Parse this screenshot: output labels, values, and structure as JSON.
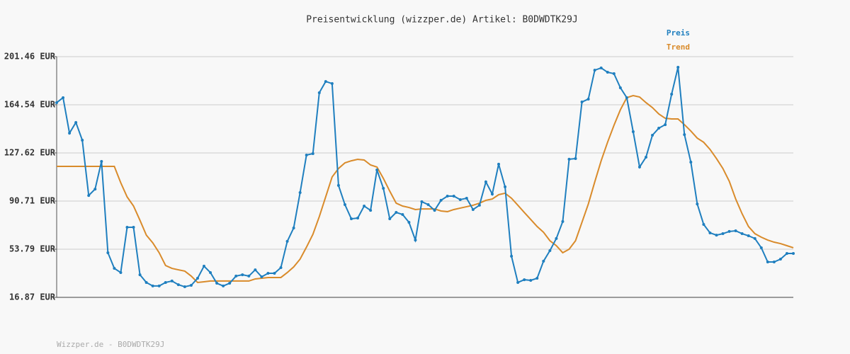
{
  "chart_data": {
    "type": "line",
    "title": "Preisentwicklung (wizzper.de) Artikel: B0DWDTK29J",
    "footer": "Wizzper.de - B0DWDTK29J",
    "categories": [
      null,
      null,
      null,
      null,
      null,
      null,
      null,
      null,
      null,
      null,
      null,
      null,
      null,
      null,
      null,
      null,
      null,
      null,
      null,
      null,
      null,
      null,
      null,
      null,
      null,
      null,
      null,
      null,
      null,
      null,
      null,
      null,
      null,
      null,
      null,
      null,
      null,
      null,
      null,
      null,
      null,
      null,
      null,
      null,
      null,
      null,
      null,
      null,
      null,
      null,
      null,
      null,
      null,
      null,
      null,
      null,
      null,
      null,
      null,
      null,
      null,
      null,
      null,
      null,
      null,
      null,
      null,
      null,
      null,
      null,
      null,
      null,
      null,
      null,
      null,
      null,
      null,
      null,
      null,
      null,
      null,
      null,
      null,
      null,
      null,
      null,
      null,
      null,
      null,
      null,
      null,
      null,
      null,
      null,
      null,
      null,
      null,
      null,
      null,
      null,
      null,
      null,
      null,
      null,
      null,
      null,
      null,
      null,
      null,
      null,
      null,
      null,
      null,
      null,
      null,
      null
    ],
    "series": [
      {
        "name": "Preis",
        "color": "#1f7fbf",
        "markers": true,
        "values": [
          166.2,
          170.0,
          142.8,
          151.0,
          137.4,
          95.0,
          99.9,
          121.1,
          51.1,
          39.1,
          35.9,
          70.6,
          70.6,
          34.2,
          28.3,
          25.6,
          25.6,
          28.3,
          29.4,
          26.6,
          25.0,
          26.1,
          31.5,
          40.8,
          35.9,
          27.7,
          25.6,
          27.7,
          33.2,
          34.2,
          33.2,
          38.0,
          32.6,
          35.3,
          35.3,
          39.7,
          59.8,
          70.1,
          97.2,
          126.0,
          127.1,
          173.8,
          182.4,
          180.8,
          102.7,
          88.0,
          77.1,
          77.7,
          86.9,
          83.6,
          114.6,
          100.5,
          77.1,
          82.0,
          80.4,
          74.4,
          60.8,
          90.2,
          88.0,
          83.6,
          91.3,
          94.5,
          94.5,
          91.8,
          92.9,
          84.2,
          87.5,
          105.4,
          96.1,
          119.0,
          101.6,
          48.4,
          28.3,
          30.4,
          29.9,
          31.5,
          44.6,
          52.7,
          62.0,
          75.0,
          122.8,
          123.3,
          166.7,
          168.9,
          191.1,
          192.8,
          189.5,
          188.4,
          177.6,
          170.0,
          143.9,
          116.8,
          124.4,
          141.2,
          146.6,
          149.3,
          172.7,
          193.3,
          141.7,
          120.6,
          88.5,
          72.8,
          66.3,
          64.6,
          65.7,
          67.4,
          67.9,
          65.7,
          64.1,
          62.0,
          54.9,
          44.0,
          44.0,
          46.2,
          50.5,
          50.5
        ]
      },
      {
        "name": "Trend",
        "color": "#d98b2b",
        "markers": false,
        "values": [
          117.3,
          117.3,
          117.3,
          117.3,
          117.3,
          117.3,
          117.3,
          117.3,
          117.3,
          117.3,
          104.8,
          93.9,
          86.9,
          76.0,
          64.6,
          58.7,
          51.1,
          41.3,
          39.1,
          38.0,
          37.0,
          33.2,
          28.3,
          28.8,
          29.4,
          29.4,
          29.4,
          29.4,
          29.4,
          29.4,
          29.4,
          31.0,
          31.5,
          32.1,
          32.1,
          32.1,
          35.9,
          40.2,
          46.2,
          55.4,
          65.2,
          78.8,
          94.0,
          109.2,
          115.7,
          120.0,
          121.6,
          122.7,
          122.2,
          118.4,
          116.8,
          108.1,
          98.3,
          89.1,
          86.9,
          85.8,
          84.2,
          84.7,
          84.7,
          84.7,
          83.1,
          82.6,
          84.2,
          85.3,
          86.4,
          87.5,
          89.1,
          91.3,
          92.3,
          95.6,
          96.7,
          92.9,
          87.5,
          82.0,
          76.6,
          71.2,
          66.8,
          60.3,
          56.5,
          51.1,
          53.8,
          60.3,
          74.4,
          88.5,
          105.4,
          121.6,
          135.8,
          148.8,
          160.7,
          170.0,
          171.6,
          170.5,
          166.2,
          162.4,
          157.5,
          154.2,
          153.7,
          153.7,
          149.3,
          144.4,
          139.0,
          135.8,
          130.3,
          123.3,
          115.7,
          105.9,
          92.3,
          81.0,
          71.2,
          65.7,
          63.0,
          60.8,
          59.2,
          58.1,
          56.5,
          54.9
        ]
      }
    ],
    "ylim": [
      16.87,
      201.46
    ],
    "yticks": [
      {
        "value": 16.87,
        "label": "16.87 EUR"
      },
      {
        "value": 53.79,
        "label": "53.79 EUR"
      },
      {
        "value": 90.71,
        "label": "90.71 EUR"
      },
      {
        "value": 127.62,
        "label": "127.62 EUR"
      },
      {
        "value": 164.54,
        "label": "164.54 EUR"
      },
      {
        "value": 201.46,
        "label": "201.46 EUR"
      }
    ],
    "grid": true,
    "legend": "top-right"
  }
}
